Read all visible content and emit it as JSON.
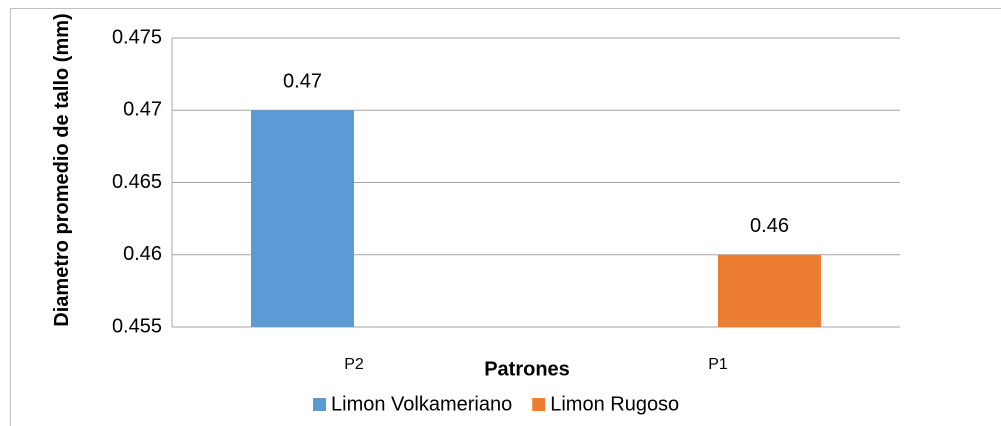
{
  "chart_data": {
    "type": "bar",
    "ylabel": "Diametro promedio de tallo (mm)",
    "xlabel": "Patrones",
    "categories": [
      "P2",
      "P1"
    ],
    "series": [
      {
        "name": "Limon Volkameriano",
        "color": "#5b9bd5",
        "values": [
          0.47,
          null
        ]
      },
      {
        "name": "Limon Rugoso",
        "color": "#ed7d31",
        "values": [
          null,
          0.46
        ]
      }
    ],
    "ylim": [
      0.455,
      0.475
    ],
    "yticks": [
      0.455,
      0.46,
      0.465,
      0.47,
      0.475
    ],
    "grid": true,
    "legend": "bottom"
  }
}
